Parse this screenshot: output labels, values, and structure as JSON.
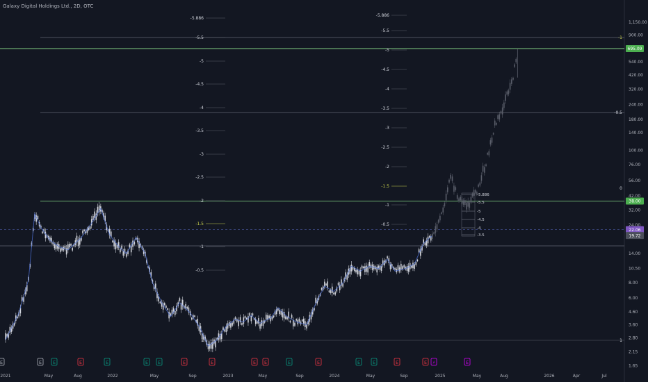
{
  "header": {
    "title": "Galaxy Digital Holdings Ltd., 2D, OTC"
  },
  "colors": {
    "background": "#131722",
    "candle": "#d1d4dc",
    "candle_projection": "#5a5e6a",
    "line_blue": "#4c6fd6",
    "level_green": "#8be28b",
    "level_gray": "#8a8e99",
    "fib_yellow": "#c8d04a",
    "badge_green": "#4caf50",
    "badge_purple": "#7e57c2",
    "badge_gray": "#4a4e5a",
    "earnings_red": "#f23645",
    "earnings_green": "#089981",
    "earnings_gray": "#b2b5be",
    "earnings_purple": "#d500f9"
  },
  "chart_data": {
    "type": "line",
    "title": "Galaxy Digital Holdings Ltd., 2D, OTC",
    "xlabel": "",
    "ylabel": "",
    "y_scale": "log",
    "ylim": [
      1.65,
      1150
    ],
    "y_ticks": [
      "1,150.00",
      "900.00",
      "695.09",
      "540.00",
      "420.00",
      "320.00",
      "240.00",
      "180.00",
      "140.00",
      "100.00",
      "76.00",
      "56.00",
      "42.00",
      "38.00",
      "32.00",
      "24.00",
      "22.06",
      "19.72",
      "14.00",
      "10.50",
      "8.00",
      "6.00",
      "4.60",
      "3.60",
      "2.80",
      "2.15",
      "1.65"
    ],
    "x_ticks": [
      "2021",
      "May",
      "Aug",
      "2022",
      "May",
      "Sep",
      "2023",
      "May",
      "Sep",
      "2024",
      "May",
      "Sep",
      "2025",
      "May",
      "Aug",
      "2026",
      "Apr",
      "Jul"
    ],
    "series": [
      {
        "points": [
          [
            "2021-01-01",
            2.7
          ],
          [
            "2021-02-15",
            4.5
          ],
          [
            "2021-03-20",
            8.5
          ],
          [
            "2021-04-10",
            30
          ],
          [
            "2021-05-01",
            23
          ],
          [
            "2021-06-01",
            18
          ],
          [
            "2021-07-01",
            16
          ],
          [
            "2021-08-01",
            15
          ],
          [
            "2021-09-15",
            19
          ],
          [
            "2021-10-20",
            25
          ],
          [
            "2021-11-20",
            33
          ],
          [
            "2021-12-20",
            20
          ],
          [
            "2022-01-20",
            16
          ],
          [
            "2022-02-15",
            14
          ],
          [
            "2022-03-20",
            19
          ],
          [
            "2022-04-20",
            14
          ],
          [
            "2022-05-15",
            8
          ],
          [
            "2022-06-15",
            5.5
          ],
          [
            "2022-07-15",
            4.2
          ],
          [
            "2022-08-15",
            5.5
          ],
          [
            "2022-09-20",
            4.5
          ],
          [
            "2022-10-20",
            3.5
          ],
          [
            "2022-11-20",
            2.4
          ],
          [
            "2022-12-20",
            2.7
          ],
          [
            "2023-01-20",
            3.5
          ],
          [
            "2023-02-20",
            4
          ],
          [
            "2023-03-20",
            3.8
          ],
          [
            "2023-04-15",
            4.3
          ],
          [
            "2023-05-15",
            3.7
          ],
          [
            "2023-06-20",
            4.1
          ],
          [
            "2023-07-15",
            5
          ],
          [
            "2023-08-15",
            4.2
          ],
          [
            "2023-09-15",
            3.8
          ],
          [
            "2023-10-20",
            3.6
          ],
          [
            "2023-11-20",
            5.4
          ],
          [
            "2023-12-20",
            7.5
          ],
          [
            "2024-01-20",
            6.8
          ],
          [
            "2024-02-20",
            8
          ],
          [
            "2024-03-20",
            11
          ],
          [
            "2024-04-20",
            10
          ],
          [
            "2024-05-20",
            11
          ],
          [
            "2024-06-20",
            10.5
          ],
          [
            "2024-07-20",
            12.5
          ],
          [
            "2024-08-15",
            10
          ],
          [
            "2024-09-20",
            10.5
          ],
          [
            "2024-10-20",
            11.5
          ],
          [
            "2024-11-20",
            17
          ],
          [
            "2024-12-20",
            19.72
          ]
        ]
      },
      {
        "points": [
          [
            "2024-12-20",
            19.72
          ],
          [
            "2025-01-20",
            30
          ],
          [
            "2025-02-20",
            60
          ],
          [
            "2025-03-20",
            38
          ],
          [
            "2025-04-20",
            36
          ],
          [
            "2025-05-20",
            45
          ],
          [
            "2025-06-20",
            80
          ],
          [
            "2025-07-20",
            160
          ],
          [
            "2025-08-20",
            240
          ],
          [
            "2025-09-20",
            400
          ],
          [
            "2025-10-05",
            695.09
          ]
        ]
      }
    ],
    "horizontal_levels": [
      {
        "value": 695.09,
        "label": "695.09"
      },
      {
        "value": 38,
        "label": "38.00"
      },
      {
        "value": 22.06,
        "label": "22.06"
      },
      {
        "value": 19.72,
        "label": "19.72"
      }
    ],
    "fib_levels": [
      {
        "label": "-5.886"
      },
      {
        "label": "-5.5"
      },
      {
        "label": "-5"
      },
      {
        "label": "-4.5"
      },
      {
        "label": "-4"
      },
      {
        "label": "-3.5"
      },
      {
        "label": "-3"
      },
      {
        "label": "-2.5"
      },
      {
        "label": "-2"
      },
      {
        "label": "-1.5"
      },
      {
        "label": "-1"
      },
      {
        "label": "-0.5"
      },
      {
        "label": "1"
      }
    ],
    "right_fib_labels": [
      "-1",
      "-0.5",
      "0",
      "1"
    ],
    "earnings_markers": [
      {
        "letter": "E",
        "color": "gray"
      },
      {
        "letter": "E",
        "color": "gray"
      },
      {
        "letter": "E",
        "color": "green"
      },
      {
        "letter": "E",
        "color": "red"
      },
      {
        "letter": "E",
        "color": "green"
      },
      {
        "letter": "E",
        "color": "green"
      },
      {
        "letter": "E",
        "color": "green"
      },
      {
        "letter": "E",
        "color": "red"
      },
      {
        "letter": "E",
        "color": "red"
      },
      {
        "letter": "E",
        "color": "red"
      },
      {
        "letter": "E",
        "color": "red"
      },
      {
        "letter": "E",
        "color": "green"
      },
      {
        "letter": "E",
        "color": "red"
      },
      {
        "letter": "E",
        "color": "green"
      },
      {
        "letter": "E",
        "color": "green"
      },
      {
        "letter": "E",
        "color": "red"
      },
      {
        "letter": "E",
        "color": "red"
      },
      {
        "letter": "⚡",
        "color": "purple"
      },
      {
        "letter": "E",
        "color": "purple"
      }
    ]
  }
}
